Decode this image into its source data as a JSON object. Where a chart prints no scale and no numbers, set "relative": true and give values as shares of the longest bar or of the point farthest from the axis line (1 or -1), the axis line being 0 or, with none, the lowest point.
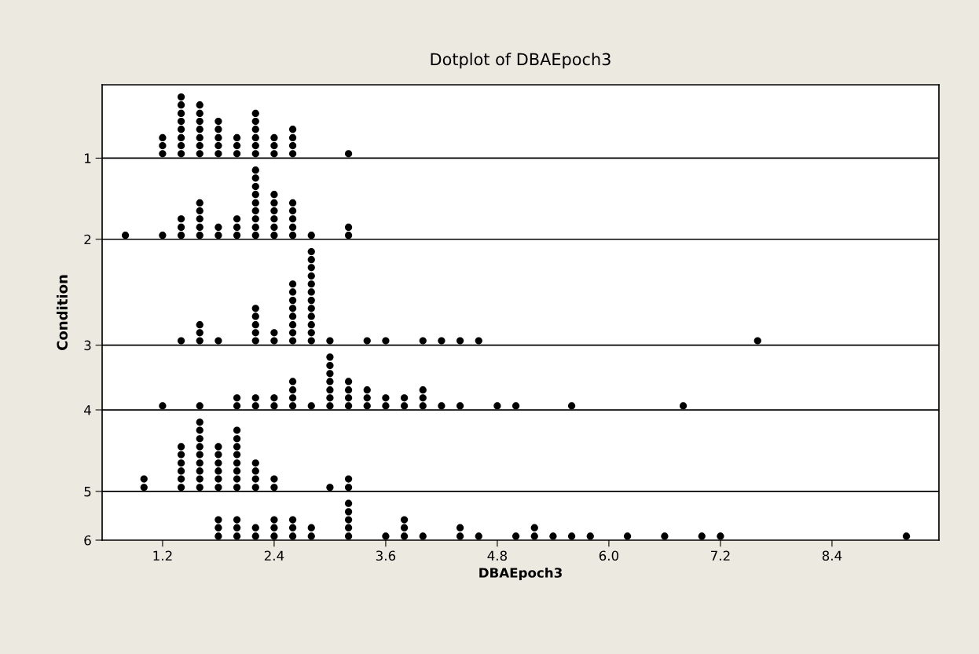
{
  "chart_data": {
    "type": "scatter",
    "relative": true,
    "title": "Dotplot of DBAEpoch3",
    "xlabel": "DBAEpoch3",
    "ylabel": "Condition",
    "marker": "circle",
    "legend": "left",
    "xlim": [
      0.55,
      9.55
    ],
    "xticks": [
      1.2,
      2.4,
      3.6,
      4.8,
      {
        "value": 6,
        "label": "6.0"
      },
      7.2,
      8.4
    ],
    "ref_lines": [
      {
        "axis": "y",
        "value": 0.862,
        "color": "#000000"
      },
      {
        "axis": "y",
        "value": 0.679,
        "color": "#000000"
      },
      {
        "axis": "y",
        "value": 0.44,
        "color": "#000000"
      },
      {
        "axis": "y",
        "value": 0.294,
        "color": "#000000"
      },
      {
        "axis": "y",
        "value": 0.11,
        "color": "#000000"
      }
    ],
    "series": [
      {
        "name": "1",
        "color": "#000000",
        "x": [
          1.2,
          1.2,
          1.2,
          1.4,
          1.4,
          1.4,
          1.4,
          1.4,
          1.4,
          1.4,
          1.4,
          1.6,
          1.6,
          1.6,
          1.6,
          1.6,
          1.6,
          1.6,
          1.8,
          1.8,
          1.8,
          1.8,
          1.8,
          2.0,
          2.0,
          2.0,
          2.2,
          2.2,
          2.2,
          2.2,
          2.2,
          2.2,
          2.4,
          2.4,
          2.4,
          2.6,
          2.6,
          2.6,
          2.6,
          3.2
        ],
        "values": [
          0.872,
          0.89,
          0.908,
          0.872,
          0.89,
          0.908,
          0.927,
          0.945,
          0.963,
          0.982,
          1,
          0.872,
          0.89,
          0.908,
          0.927,
          0.945,
          0.963,
          0.982,
          0.872,
          0.89,
          0.908,
          0.927,
          0.945,
          0.872,
          0.89,
          0.908,
          0.872,
          0.89,
          0.908,
          0.927,
          0.945,
          0.963,
          0.872,
          0.89,
          0.908,
          0.872,
          0.89,
          0.908,
          0.927,
          0.872
        ]
      },
      {
        "name": "2",
        "color": "#000000",
        "x": [
          0.8,
          1.2,
          1.4,
          1.4,
          1.4,
          1.6,
          1.6,
          1.6,
          1.6,
          1.6,
          1.8,
          1.8,
          2.0,
          2.0,
          2.0,
          2.2,
          2.2,
          2.2,
          2.2,
          2.2,
          2.2,
          2.2,
          2.2,
          2.2,
          2.4,
          2.4,
          2.4,
          2.4,
          2.4,
          2.4,
          2.6,
          2.6,
          2.6,
          2.6,
          2.6,
          2.8,
          3.2,
          3.2
        ],
        "values": [
          0.688,
          0.688,
          0.688,
          0.706,
          0.725,
          0.688,
          0.706,
          0.725,
          0.743,
          0.761,
          0.688,
          0.706,
          0.688,
          0.706,
          0.725,
          0.688,
          0.706,
          0.725,
          0.743,
          0.761,
          0.78,
          0.798,
          0.817,
          0.835,
          0.688,
          0.706,
          0.725,
          0.743,
          0.761,
          0.78,
          0.688,
          0.706,
          0.725,
          0.743,
          0.761,
          0.688,
          0.688,
          0.706
        ]
      },
      {
        "name": "3",
        "color": "#000000",
        "x": [
          1.4,
          1.6,
          1.6,
          1.6,
          1.8,
          2.2,
          2.2,
          2.2,
          2.2,
          2.2,
          2.4,
          2.4,
          2.6,
          2.6,
          2.6,
          2.6,
          2.6,
          2.6,
          2.6,
          2.6,
          2.8,
          2.8,
          2.8,
          2.8,
          2.8,
          2.8,
          2.8,
          2.8,
          2.8,
          2.8,
          2.8,
          2.8,
          3.0,
          3.4,
          3.6,
          4.0,
          4.2,
          4.4,
          4.6,
          7.6
        ],
        "values": [
          0.45,
          0.45,
          0.468,
          0.486,
          0.45,
          0.45,
          0.468,
          0.486,
          0.505,
          0.523,
          0.45,
          0.468,
          0.45,
          0.468,
          0.486,
          0.505,
          0.523,
          0.541,
          0.56,
          0.578,
          0.45,
          0.468,
          0.486,
          0.505,
          0.523,
          0.541,
          0.56,
          0.578,
          0.596,
          0.615,
          0.633,
          0.651,
          0.45,
          0.45,
          0.45,
          0.45,
          0.45,
          0.45,
          0.45,
          0.45
        ]
      },
      {
        "name": "4",
        "color": "#000000",
        "x": [
          1.2,
          1.6,
          2.0,
          2.0,
          2.2,
          2.2,
          2.4,
          2.4,
          2.6,
          2.6,
          2.6,
          2.6,
          2.8,
          3.0,
          3.0,
          3.0,
          3.0,
          3.0,
          3.0,
          3.0,
          3.2,
          3.2,
          3.2,
          3.2,
          3.4,
          3.4,
          3.4,
          3.6,
          3.6,
          3.8,
          3.8,
          4.0,
          4.0,
          4.0,
          4.2,
          4.4,
          4.8,
          5.0,
          5.6,
          6.8
        ],
        "values": [
          0.303,
          0.303,
          0.303,
          0.321,
          0.303,
          0.321,
          0.303,
          0.321,
          0.303,
          0.321,
          0.339,
          0.358,
          0.303,
          0.303,
          0.321,
          0.339,
          0.358,
          0.376,
          0.394,
          0.413,
          0.303,
          0.321,
          0.339,
          0.358,
          0.303,
          0.321,
          0.339,
          0.303,
          0.321,
          0.303,
          0.321,
          0.303,
          0.321,
          0.339,
          0.303,
          0.303,
          0.303,
          0.303,
          0.303,
          0.303
        ]
      },
      {
        "name": "5",
        "color": "#000000",
        "x": [
          1.0,
          1.0,
          1.4,
          1.4,
          1.4,
          1.4,
          1.4,
          1.4,
          1.6,
          1.6,
          1.6,
          1.6,
          1.6,
          1.6,
          1.6,
          1.6,
          1.6,
          1.8,
          1.8,
          1.8,
          1.8,
          1.8,
          1.8,
          2.0,
          2.0,
          2.0,
          2.0,
          2.0,
          2.0,
          2.0,
          2.0,
          2.2,
          2.2,
          2.2,
          2.2,
          2.4,
          2.4,
          3.0,
          3.2,
          3.2
        ],
        "values": [
          0.119,
          0.138,
          0.119,
          0.138,
          0.156,
          0.174,
          0.193,
          0.211,
          0.119,
          0.138,
          0.156,
          0.174,
          0.193,
          0.211,
          0.229,
          0.248,
          0.266,
          0.119,
          0.138,
          0.156,
          0.174,
          0.193,
          0.211,
          0.119,
          0.138,
          0.156,
          0.174,
          0.193,
          0.211,
          0.229,
          0.248,
          0.119,
          0.138,
          0.156,
          0.174,
          0.119,
          0.138,
          0.119,
          0.119,
          0.138
        ]
      },
      {
        "name": "6",
        "color": "#000000",
        "x": [
          1.8,
          1.8,
          1.8,
          2.0,
          2.0,
          2.0,
          2.2,
          2.2,
          2.4,
          2.4,
          2.4,
          2.6,
          2.6,
          2.6,
          2.8,
          2.8,
          3.2,
          3.2,
          3.2,
          3.2,
          3.2,
          3.6,
          3.8,
          3.8,
          3.8,
          4.0,
          4.4,
          4.4,
          4.6,
          5.0,
          5.2,
          5.2,
          5.4,
          5.6,
          5.8,
          6.2,
          6.6,
          7.0,
          7.2,
          9.2
        ],
        "values": [
          0.009,
          0.028,
          0.046,
          0.009,
          0.028,
          0.046,
          0.009,
          0.028,
          0.009,
          0.028,
          0.046,
          0.009,
          0.028,
          0.046,
          0.009,
          0.028,
          0.009,
          0.028,
          0.046,
          0.064,
          0.083,
          0.009,
          0.009,
          0.028,
          0.046,
          0.009,
          0.009,
          0.028,
          0.009,
          0.009,
          0.009,
          0.028,
          0.009,
          0.009,
          0.009,
          0.009,
          0.009,
          0.009,
          0.009,
          0.009
        ]
      }
    ]
  }
}
